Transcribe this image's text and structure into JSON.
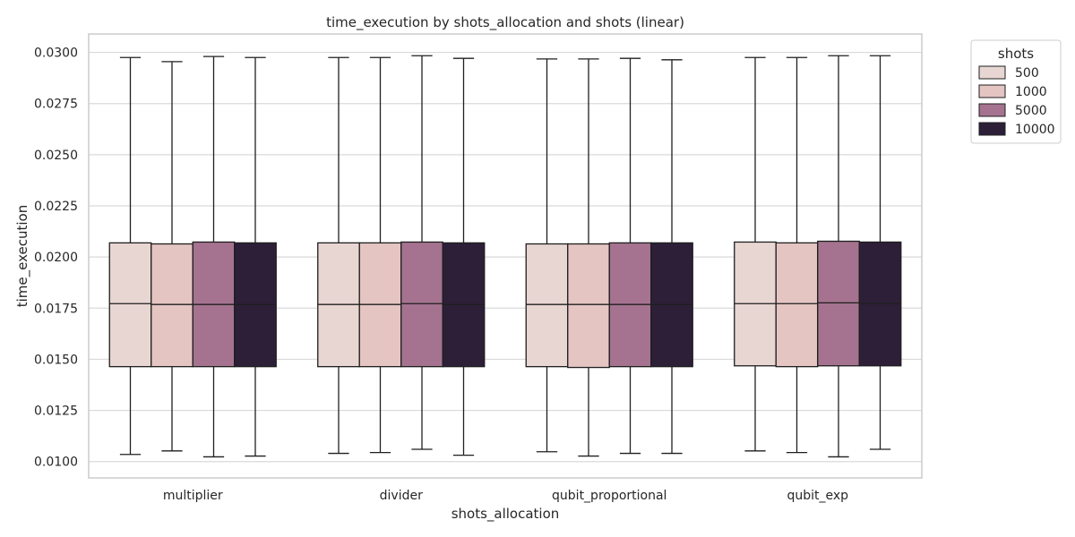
{
  "chart_data": {
    "type": "box",
    "title": "time_execution by shots_allocation and shots (linear)",
    "xlabel": "shots_allocation",
    "ylabel": "time_execution",
    "ylim": [
      0.0092,
      0.0309
    ],
    "yticks": [
      "0.0100",
      "0.0125",
      "0.0150",
      "0.0175",
      "0.0200",
      "0.0225",
      "0.0250",
      "0.0275",
      "0.0300"
    ],
    "grid": "horizontal",
    "legend": {
      "title": "shots",
      "placement": "outside-top-right"
    },
    "categories": [
      "multiplier",
      "divider",
      "qubit_proportional",
      "qubit_exp"
    ],
    "series": [
      {
        "name": "500",
        "color": "#e8d6d3",
        "boxes": [
          {
            "whislo": 0.01035,
            "q1": 0.01464,
            "med": 0.01772,
            "q3": 0.02069,
            "whishi": 0.02975
          },
          {
            "whislo": 0.0104,
            "q1": 0.01464,
            "med": 0.01768,
            "q3": 0.02069,
            "whishi": 0.02975
          },
          {
            "whislo": 0.01048,
            "q1": 0.01464,
            "med": 0.01768,
            "q3": 0.02064,
            "whishi": 0.02968
          },
          {
            "whislo": 0.01052,
            "q1": 0.01468,
            "med": 0.01772,
            "q3": 0.02073,
            "whishi": 0.02975
          }
        ]
      },
      {
        "name": "1000",
        "color": "#e4c5c2",
        "boxes": [
          {
            "whislo": 0.01052,
            "q1": 0.01464,
            "med": 0.01768,
            "q3": 0.02064,
            "whishi": 0.02955
          },
          {
            "whislo": 0.01044,
            "q1": 0.01464,
            "med": 0.01768,
            "q3": 0.02069,
            "whishi": 0.02975
          },
          {
            "whislo": 0.01027,
            "q1": 0.0146,
            "med": 0.01768,
            "q3": 0.02064,
            "whishi": 0.02968
          },
          {
            "whislo": 0.01044,
            "q1": 0.01464,
            "med": 0.01772,
            "q3": 0.02069,
            "whishi": 0.02975
          }
        ]
      },
      {
        "name": "5000",
        "color": "#a5738f",
        "boxes": [
          {
            "whislo": 0.01023,
            "q1": 0.01464,
            "med": 0.01768,
            "q3": 0.02073,
            "whishi": 0.0298
          },
          {
            "whislo": 0.0106,
            "q1": 0.01464,
            "med": 0.01772,
            "q3": 0.02073,
            "whishi": 0.02984
          },
          {
            "whislo": 0.0104,
            "q1": 0.01464,
            "med": 0.01768,
            "q3": 0.02069,
            "whishi": 0.02971
          },
          {
            "whislo": 0.01023,
            "q1": 0.01468,
            "med": 0.01776,
            "q3": 0.02077,
            "whishi": 0.02984
          }
        ]
      },
      {
        "name": "10000",
        "color": "#2d1f38",
        "boxes": [
          {
            "whislo": 0.01027,
            "q1": 0.01464,
            "med": 0.01768,
            "q3": 0.02069,
            "whishi": 0.02975
          },
          {
            "whislo": 0.01031,
            "q1": 0.01464,
            "med": 0.01768,
            "q3": 0.02069,
            "whishi": 0.02971
          },
          {
            "whislo": 0.0104,
            "q1": 0.01464,
            "med": 0.01768,
            "q3": 0.02069,
            "whishi": 0.02964
          },
          {
            "whislo": 0.0106,
            "q1": 0.01468,
            "med": 0.01772,
            "q3": 0.02073,
            "whishi": 0.02984
          }
        ]
      }
    ]
  }
}
